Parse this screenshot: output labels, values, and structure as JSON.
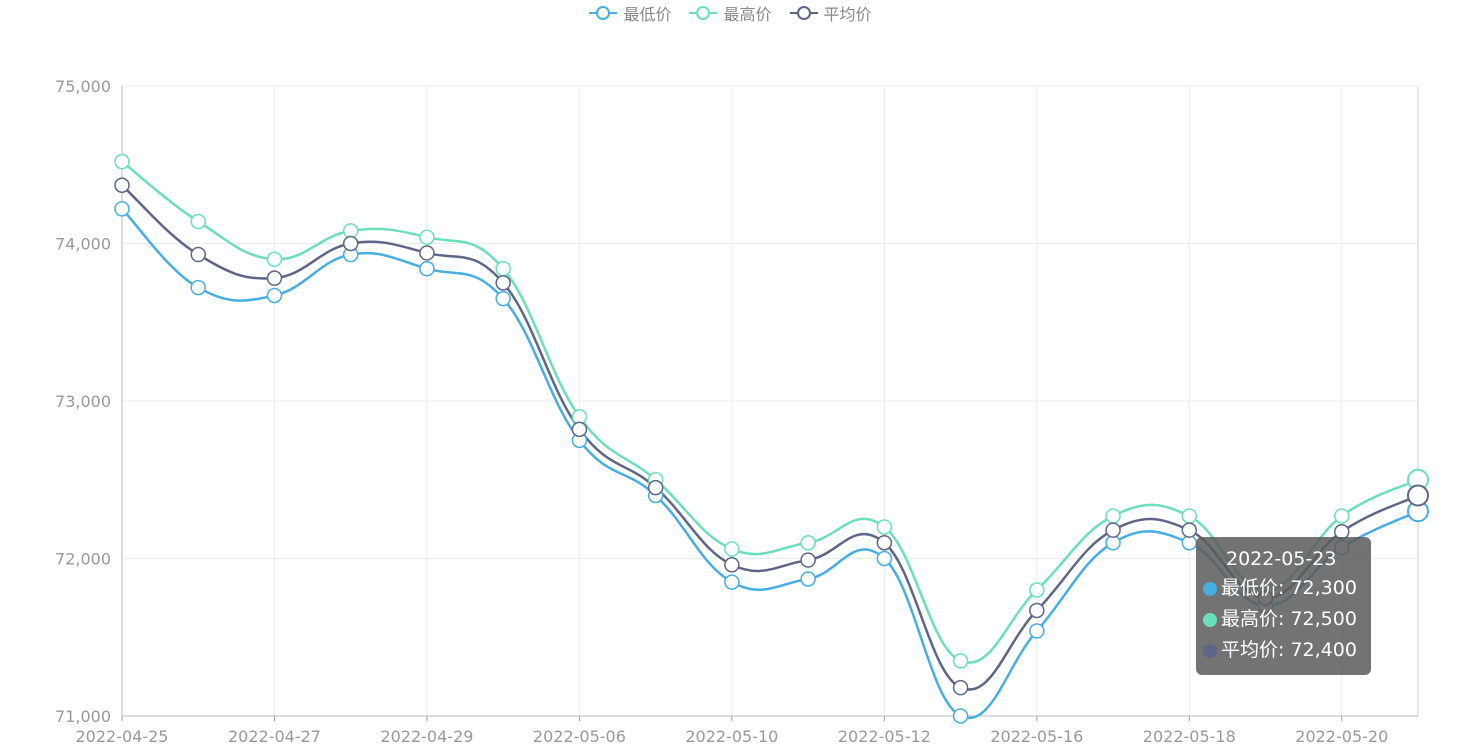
{
  "chart_data": {
    "type": "line",
    "title": "",
    "xlabel": "",
    "ylabel": "",
    "ylim": [
      71000,
      75000
    ],
    "yticks": [
      71000,
      72000,
      73000,
      74000,
      75000
    ],
    "ytick_labels": [
      "71,000",
      "72,000",
      "73,000",
      "74,000",
      "75,000"
    ],
    "x_labels_shown": [
      "2022-04-25",
      "2022-04-27",
      "2022-04-29",
      "2022-05-06",
      "2022-05-10",
      "2022-05-12",
      "2022-05-16",
      "2022-05-18",
      "2022-05-20"
    ],
    "legend_position": "top-center",
    "grid": true,
    "series": [
      {
        "name": "最低价",
        "color": "#46aee0",
        "values": [
          74220,
          73720,
          73670,
          73930,
          73840,
          73650,
          72750,
          72400,
          71850,
          71870,
          72000,
          71000,
          71540,
          72100,
          72100,
          71700,
          72070,
          72300
        ]
      },
      {
        "name": "最高价",
        "color": "#6bdfbb",
        "values": [
          74520,
          74140,
          73900,
          74080,
          74040,
          73840,
          72900,
          72500,
          72060,
          72100,
          72200,
          71350,
          71800,
          72270,
          72270,
          71800,
          72270,
          72500
        ]
      },
      {
        "name": "平均价",
        "color": "#5d6687",
        "values": [
          74370,
          73930,
          73780,
          74000,
          73940,
          73750,
          72820,
          72450,
          71960,
          71990,
          72100,
          71180,
          71670,
          72180,
          72180,
          71750,
          72170,
          72400
        ]
      }
    ],
    "tooltip": {
      "date": "2022-05-23",
      "rows": [
        {
          "label": "最低价: 72,300",
          "color": "#46aee0"
        },
        {
          "label": "最高价: 72,500",
          "color": "#6bdfbb"
        },
        {
          "label": "平均价: 72,400",
          "color": "#5d6687"
        }
      ]
    }
  }
}
